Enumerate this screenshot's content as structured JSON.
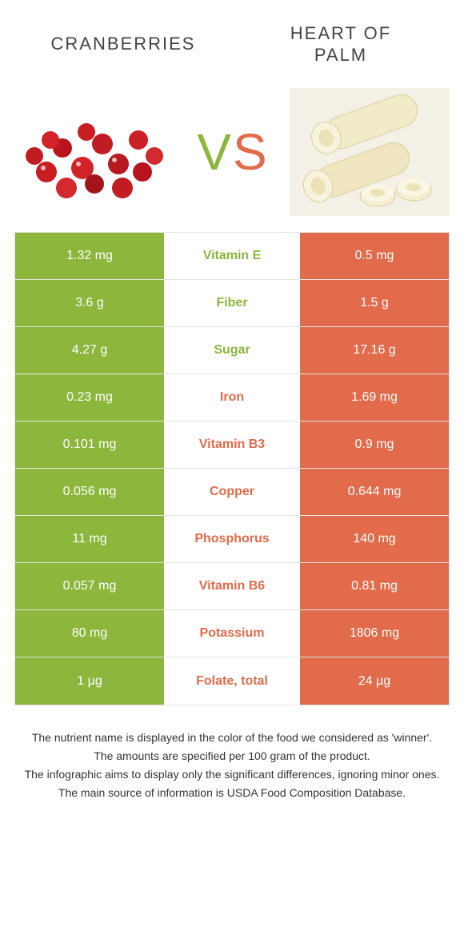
{
  "colors": {
    "green": "#8cb63c",
    "orange": "#e16b4a",
    "border": "#e4e4e4",
    "text": "#333333",
    "white": "#ffffff"
  },
  "titles": {
    "left": "CRANBERRIES",
    "right": "HEART OF\nPALM"
  },
  "vs": {
    "v": "V",
    "s": "S"
  },
  "table": {
    "col_left_bg": "#8cb63c",
    "col_right_bg": "#e16b4a",
    "rows": [
      {
        "left": "1.32 mg",
        "label": "Vitamin E",
        "label_color": "#8cb63c",
        "right": "0.5 mg"
      },
      {
        "left": "3.6 g",
        "label": "Fiber",
        "label_color": "#8cb63c",
        "right": "1.5 g"
      },
      {
        "left": "4.27 g",
        "label": "Sugar",
        "label_color": "#8cb63c",
        "right": "17.16 g"
      },
      {
        "left": "0.23 mg",
        "label": "Iron",
        "label_color": "#e16b4a",
        "right": "1.69 mg"
      },
      {
        "left": "0.101 mg",
        "label": "Vitamin B3",
        "label_color": "#e16b4a",
        "right": "0.9 mg"
      },
      {
        "left": "0.056 mg",
        "label": "Copper",
        "label_color": "#e16b4a",
        "right": "0.644 mg"
      },
      {
        "left": "11 mg",
        "label": "Phosphorus",
        "label_color": "#e16b4a",
        "right": "140 mg"
      },
      {
        "left": "0.057 mg",
        "label": "Vitamin B6",
        "label_color": "#e16b4a",
        "right": "0.81 mg"
      },
      {
        "left": "80 mg",
        "label": "Potassium",
        "label_color": "#e16b4a",
        "right": "1806 mg"
      },
      {
        "left": "1 µg",
        "label": "Folate, total",
        "label_color": "#e16b4a",
        "right": "24 µg"
      }
    ]
  },
  "footer": {
    "lines": [
      "The nutrient name is displayed in the color of the food we considered as 'winner'.",
      "The amounts are specified per 100 gram of the product.",
      "The infographic aims to display only the significant differences, ignoring minor ones.",
      "The main source of information is USDA Food Composition Database."
    ]
  }
}
